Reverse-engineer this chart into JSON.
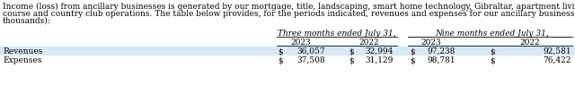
{
  "title_line1": "Income (loss) from ancillary businesses is generated by our mortgage, title, landscaping, smart home technology, Gibraltar, apartment living, city living, and golf",
  "title_line2": "course and country club operations. The table below provides, for the periods indicated, revenues and expenses for our ancillary businesses (amounts in",
  "title_line3": "thousands):",
  "col_group1": "Three months ended July 31,",
  "col_group2": "Nine months ended July 31,",
  "row_labels": [
    "Revenues",
    "Expenses"
  ],
  "data": [
    [
      "36,057",
      "32,994",
      "97,238",
      "92,581"
    ],
    [
      "37,508",
      "31,129",
      "98,781",
      "76,422"
    ]
  ],
  "row_bg_colors": [
    "#d9e8f5",
    "#ffffff"
  ],
  "font_size": 6.5,
  "title_font_size": 6.5,
  "text_color": "#000000",
  "fig_width": 6.4,
  "fig_height": 0.95,
  "dpi": 100
}
